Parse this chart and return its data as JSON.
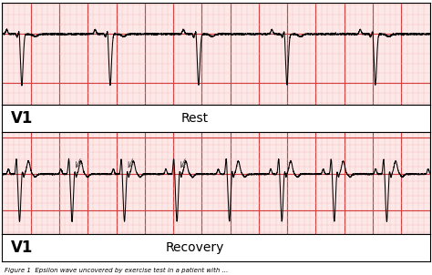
{
  "background_color": "#ffffff",
  "grid_major_color": "#d44040",
  "grid_minor_color": "#f5c0c0",
  "ecg_color": "#000000",
  "border_color": "#000000",
  "fig_width": 4.74,
  "fig_height": 3.02,
  "top_label": "V1",
  "top_text": "Rest",
  "bottom_label": "V1",
  "bottom_text": "Recovery",
  "caption": "Figure 1  Epsilon wave uncovered by exercise test in a patient with ...",
  "grid_bg": "#fde8e8",
  "label_bg": "#ffffff",
  "n_samples": 4000,
  "t_max": 7.5,
  "rest_period": 1.55,
  "recovery_period": 0.92
}
